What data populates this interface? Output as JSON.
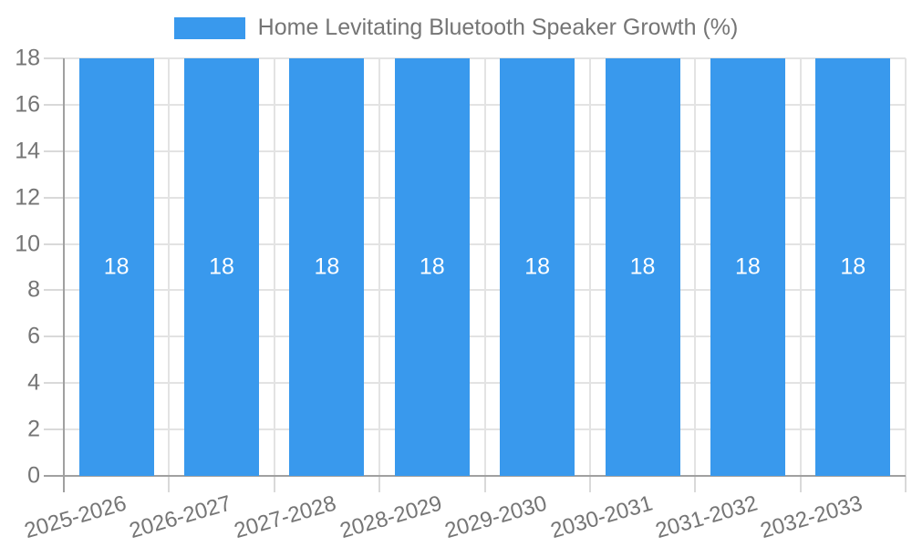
{
  "chart_data": {
    "type": "bar",
    "title": "Home Levitating Bluetooth Speaker Growth (%)",
    "legend": {
      "position": "top",
      "label": "Home Levitating Bluetooth Speaker Growth (%)"
    },
    "categories": [
      "2025-2026",
      "2026-2027",
      "2027-2028",
      "2028-2029",
      "2029-2030",
      "2030-2031",
      "2031-2032",
      "2032-2033"
    ],
    "series": [
      {
        "name": "Home Levitating Bluetooth Speaker Growth (%)",
        "values": [
          18,
          18,
          18,
          18,
          18,
          18,
          18,
          18
        ]
      }
    ],
    "bar_value_labels": [
      "18",
      "18",
      "18",
      "18",
      "18",
      "18",
      "18",
      "18"
    ],
    "xlabel": "",
    "ylabel": "",
    "ylim": [
      0,
      18
    ],
    "yticks": [
      0,
      2,
      4,
      6,
      8,
      10,
      12,
      14,
      16,
      18
    ],
    "ytick_labels": [
      "0",
      "2",
      "4",
      "6",
      "8",
      "10",
      "12",
      "14",
      "16",
      "18"
    ],
    "grid": true,
    "colors": {
      "bar": "#3999ed",
      "bar_label": "#ffffff",
      "grid": "#e3e3e3",
      "outer_tick": "#d9d9d9",
      "axis": "#a0a0a0",
      "tick_text": "#757575",
      "legend_text": "#757575"
    }
  }
}
